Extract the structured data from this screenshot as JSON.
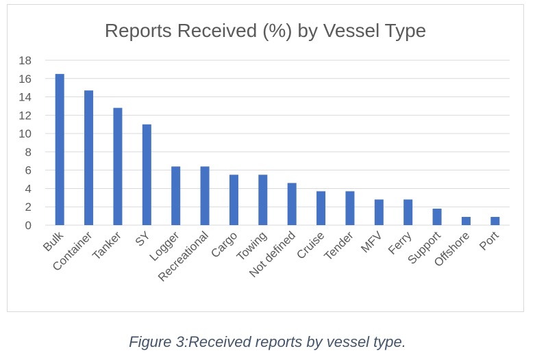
{
  "caption": "Figure 3:Received reports by vessel type.",
  "chart_data": {
    "type": "bar",
    "title": "Reports Received (%) by Vessel Type",
    "xlabel": "",
    "ylabel": "",
    "categories": [
      "Bulk",
      "Container",
      "Tanker",
      "SY",
      "Logger",
      "Recreational",
      "Cargo",
      "Towing",
      "Not defined",
      "Cruise",
      "Tender",
      "MFV",
      "Ferry",
      "Support",
      "Offshore",
      "Port"
    ],
    "values": [
      16.5,
      14.7,
      12.8,
      11.0,
      6.4,
      6.4,
      5.5,
      5.5,
      4.6,
      3.7,
      3.7,
      2.8,
      2.8,
      1.8,
      0.9,
      0.9
    ],
    "ylim": [
      0,
      18
    ],
    "yticks": [
      0,
      2,
      4,
      6,
      8,
      10,
      12,
      14,
      16,
      18
    ],
    "grid": true,
    "legend": "none",
    "bar_color": "#4472c4",
    "grid_color": "#d9d9d9"
  }
}
